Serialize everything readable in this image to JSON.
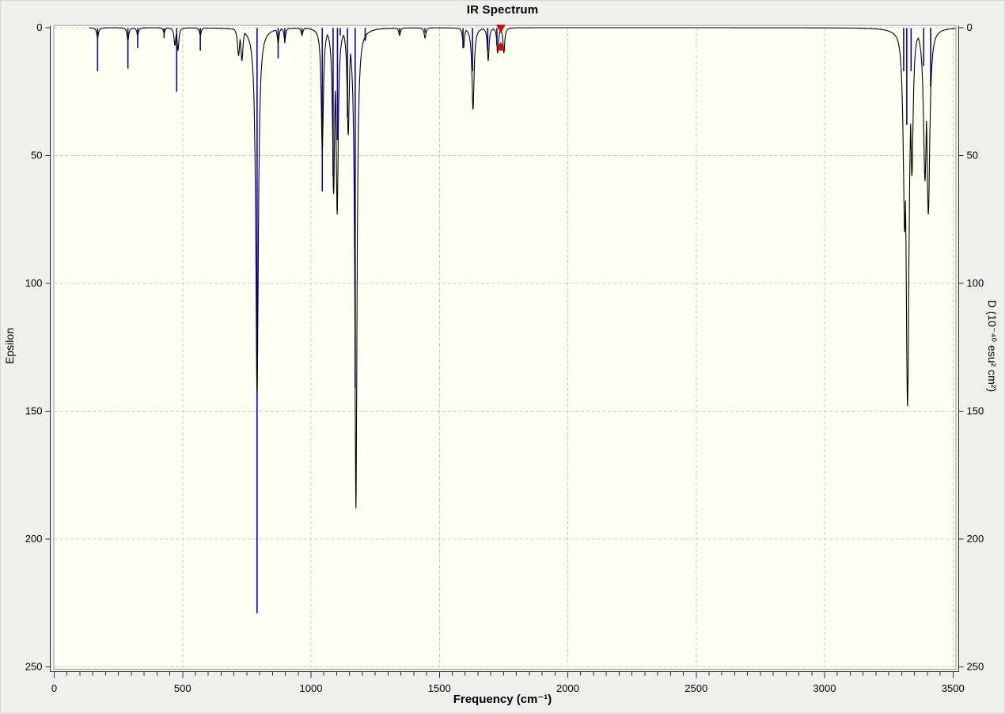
{
  "window": {
    "title": "IR Spectrum"
  },
  "chart_data": {
    "type": "line",
    "title": "IR Spectrum",
    "xlabel": "Frequency (cm⁻¹)",
    "ylabel_left": "Epsilon",
    "ylabel_right": "D (10⁻⁴⁰ esu² cm²)",
    "xlim": [
      0,
      3510
    ],
    "ylim": [
      0,
      250
    ],
    "y_inverted": true,
    "grid": "dashed",
    "x_major_ticks": [
      0,
      500,
      1000,
      1500,
      2000,
      2500,
      3000,
      3500
    ],
    "x_minor_step": 50,
    "y_ticks": [
      0,
      50,
      100,
      150,
      200,
      250
    ],
    "curve_start": 137,
    "curve_peaks": [
      [
        169,
        4,
        4
      ],
      [
        287,
        5,
        4
      ],
      [
        325,
        3,
        4
      ],
      [
        428,
        2,
        4
      ],
      [
        470,
        7,
        4
      ],
      [
        482,
        9,
        4
      ],
      [
        569,
        3,
        4
      ],
      [
        718,
        11,
        5
      ],
      [
        731,
        13,
        5
      ],
      [
        790,
        143,
        6
      ],
      [
        872,
        6,
        4
      ],
      [
        898,
        5,
        4
      ],
      [
        965,
        3,
        4
      ],
      [
        1044,
        48,
        5
      ],
      [
        1088,
        65,
        5
      ],
      [
        1102,
        73,
        5
      ],
      [
        1145,
        42,
        5
      ],
      [
        1175,
        188,
        5
      ],
      [
        1211,
        5,
        4
      ],
      [
        1345,
        3,
        4
      ],
      [
        1444,
        4,
        4
      ],
      [
        1594,
        8,
        4
      ],
      [
        1631,
        32,
        5
      ],
      [
        1690,
        13,
        4
      ],
      [
        1727,
        10,
        4
      ],
      [
        1751,
        10,
        4
      ],
      [
        3312,
        80,
        7
      ],
      [
        3323,
        148,
        7
      ],
      [
        3340,
        58,
        6
      ],
      [
        3391,
        60,
        7
      ],
      [
        3404,
        73,
        7
      ]
    ],
    "sticks": [
      [
        169,
        17
      ],
      [
        287,
        16
      ],
      [
        325,
        8
      ],
      [
        428,
        4
      ],
      [
        477,
        25
      ],
      [
        569,
        9
      ],
      [
        790,
        229
      ],
      [
        872,
        12
      ],
      [
        898,
        6
      ],
      [
        965,
        2
      ],
      [
        1044,
        64
      ],
      [
        1086,
        58
      ],
      [
        1103,
        44
      ],
      [
        1114,
        3
      ],
      [
        1142,
        35
      ],
      [
        1172,
        141
      ],
      [
        1211,
        4
      ],
      [
        1345,
        2
      ],
      [
        1444,
        2
      ],
      [
        1592,
        8
      ],
      [
        1629,
        17
      ],
      [
        1688,
        9
      ],
      [
        1724,
        7
      ],
      [
        3308,
        17
      ],
      [
        3320,
        38
      ],
      [
        3337,
        17
      ],
      [
        3386,
        15
      ],
      [
        3413,
        23
      ]
    ],
    "marker": {
      "freq": 1739,
      "color": "#e60000",
      "edge": "#8b0000"
    },
    "colors": {
      "plot_bg": "#fffff4",
      "plot_border": "#8e8e8e",
      "grid": "#c9c9c2",
      "axis": "#2a2a2a",
      "curve": "#000000",
      "stick": "#0000cc",
      "outer_bg": "#efefec"
    }
  }
}
